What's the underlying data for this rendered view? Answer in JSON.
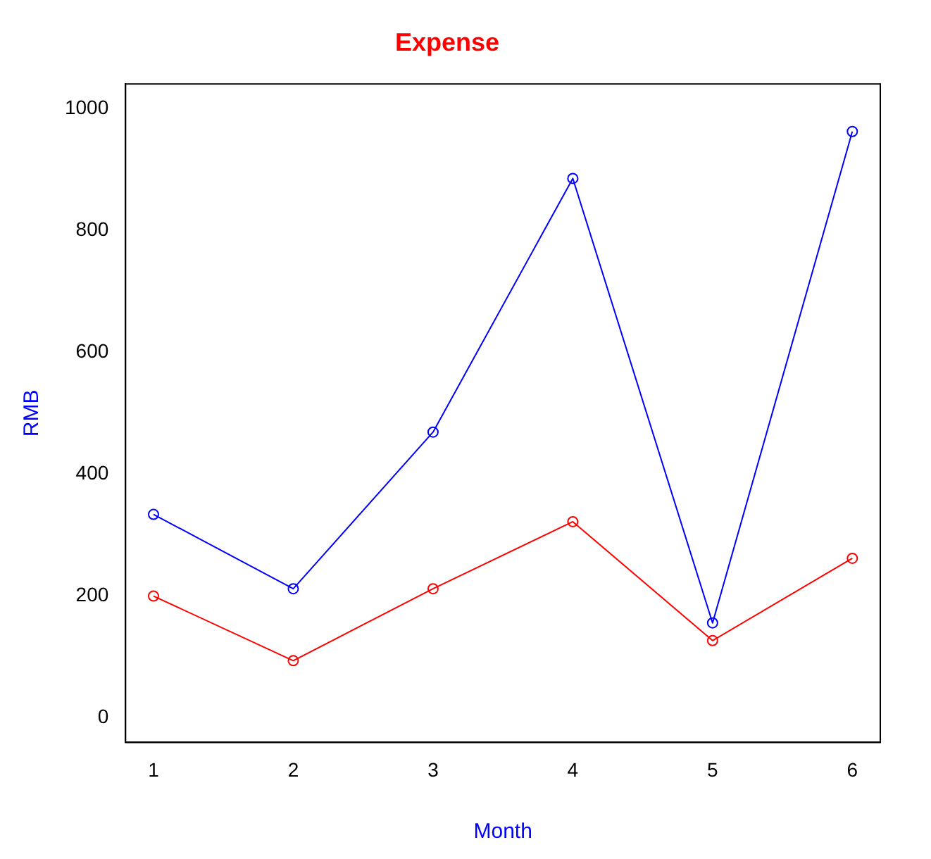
{
  "chart_data": {
    "type": "line",
    "title": "Expense",
    "xlabel": "Month",
    "ylabel": "RMB",
    "x": [
      1,
      2,
      3,
      4,
      5,
      6
    ],
    "series": [
      {
        "color": "#0000ff",
        "values": [
          334,
          212,
          469,
          885,
          156,
          962
        ]
      },
      {
        "color": "#ff0000",
        "values": [
          200,
          94,
          212,
          322,
          127,
          262
        ]
      }
    ],
    "xlim": [
      0.8,
      6.2
    ],
    "xticks": [
      1,
      2,
      3,
      4,
      5,
      6
    ],
    "ylim": [
      -40,
      1040
    ],
    "yticks": [
      0,
      200,
      400,
      600,
      800,
      1000
    ],
    "grid": false,
    "legend": false,
    "marker": "circle",
    "line_style": "solid"
  }
}
